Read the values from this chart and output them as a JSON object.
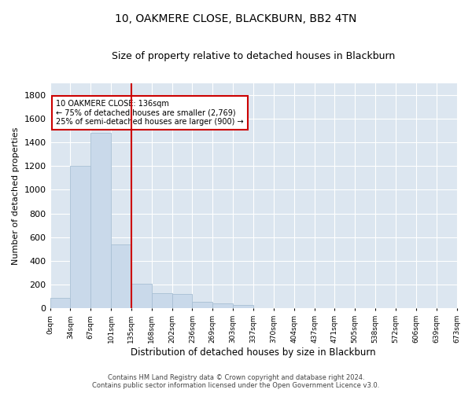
{
  "title": "10, OAKMERE CLOSE, BLACKBURN, BB2 4TN",
  "subtitle": "Size of property relative to detached houses in Blackburn",
  "xlabel": "Distribution of detached houses by size in Blackburn",
  "ylabel": "Number of detached properties",
  "bar_color": "#c9d9ea",
  "bar_edge_color": "#a8bfd4",
  "background_color": "#dce6f0",
  "vline_x": 4,
  "vline_color": "#cc0000",
  "annotation_text": "10 OAKMERE CLOSE: 136sqm\n← 75% of detached houses are smaller (2,769)\n25% of semi-detached houses are larger (900) →",
  "annotation_box_color": "white",
  "annotation_box_edge": "#cc0000",
  "tick_labels": [
    "0sqm",
    "34sqm",
    "67sqm",
    "101sqm",
    "135sqm",
    "168sqm",
    "202sqm",
    "236sqm",
    "269sqm",
    "303sqm",
    "337sqm",
    "370sqm",
    "404sqm",
    "437sqm",
    "471sqm",
    "505sqm",
    "538sqm",
    "572sqm",
    "606sqm",
    "639sqm",
    "673sqm"
  ],
  "bar_values": [
    90,
    1200,
    1480,
    540,
    210,
    130,
    120,
    55,
    45,
    30,
    5,
    0,
    0,
    0,
    0,
    0,
    0,
    0,
    0,
    0
  ],
  "ylim": [
    0,
    1900
  ],
  "yticks": [
    0,
    200,
    400,
    600,
    800,
    1000,
    1200,
    1400,
    1600,
    1800
  ],
  "footer_line1": "Contains HM Land Registry data © Crown copyright and database right 2024.",
  "footer_line2": "Contains public sector information licensed under the Open Government Licence v3.0."
}
